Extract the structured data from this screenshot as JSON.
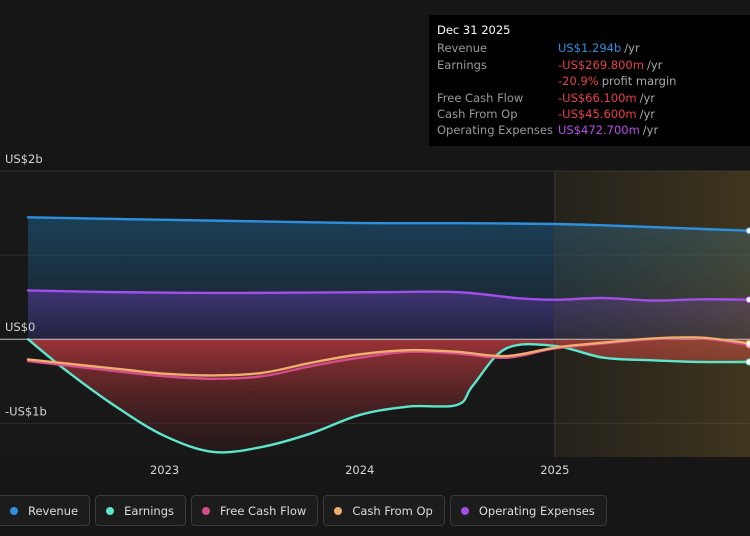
{
  "tooltip": {
    "date": "Dec 31 2025",
    "rows": [
      {
        "label": "Revenue",
        "value": "US$1.294b",
        "unit": "/yr",
        "color": "#2e8fde"
      },
      {
        "label": "Earnings",
        "value": "-US$269.800m",
        "unit": "/yr",
        "color": "#e8414a"
      },
      {
        "label": "",
        "value": "-20.9%",
        "unit": "profit margin",
        "color": "#e8414a"
      },
      {
        "label": "Free Cash Flow",
        "value": "-US$66.100m",
        "unit": "/yr",
        "color": "#e8414a"
      },
      {
        "label": "Cash From Op",
        "value": "-US$45.600m",
        "unit": "/yr",
        "color": "#e8414a"
      },
      {
        "label": "Operating Expenses",
        "value": "US$472.700m",
        "unit": "/yr",
        "color": "#b94fe8"
      }
    ]
  },
  "legend": [
    {
      "label": "Revenue",
      "color": "#2e8fde"
    },
    {
      "label": "Earnings",
      "color": "#5ce6cc"
    },
    {
      "label": "Free Cash Flow",
      "color": "#d44d8c"
    },
    {
      "label": "Cash From Op",
      "color": "#f0ad6c"
    },
    {
      "label": "Operating Expenses",
      "color": "#a34ee8"
    }
  ],
  "chart_data": {
    "type": "area",
    "ylim": [
      -1.4,
      2.0
    ],
    "xlim": [
      2022.3,
      2026.0
    ],
    "y_tick_labels": [
      {
        "value": 2.0,
        "label": "US$2b"
      },
      {
        "value": 0,
        "label": "US$0"
      },
      {
        "value": -1.0,
        "label": "-US$1b"
      }
    ],
    "x_ticks": [
      2023,
      2024,
      2025
    ],
    "forecast_start": 2025,
    "series": [
      {
        "name": "Revenue",
        "color": "#2e8fde",
        "x": [
          2022.3,
          2022.75,
          2023.25,
          2023.75,
          2024.1,
          2024.5,
          2025.0,
          2025.3,
          2025.65,
          2026.0
        ],
        "y": [
          1.45,
          1.43,
          1.41,
          1.39,
          1.38,
          1.38,
          1.37,
          1.35,
          1.32,
          1.29
        ]
      },
      {
        "name": "Operating Expenses",
        "color": "#a34ee8",
        "x": [
          2022.3,
          2022.75,
          2023.25,
          2023.75,
          2024.1,
          2024.5,
          2024.8,
          2025.0,
          2025.25,
          2025.5,
          2025.75,
          2026.0
        ],
        "y": [
          0.58,
          0.56,
          0.55,
          0.555,
          0.56,
          0.56,
          0.49,
          0.47,
          0.49,
          0.46,
          0.475,
          0.47
        ]
      },
      {
        "name": "Earnings",
        "color": "#5ce6cc",
        "x": [
          2022.3,
          2022.5,
          2022.75,
          2023.0,
          2023.25,
          2023.5,
          2023.75,
          2024.0,
          2024.25,
          2024.5,
          2024.58,
          2024.75,
          2025.0,
          2025.25,
          2025.5,
          2025.75,
          2026.0
        ],
        "y": [
          0.0,
          -0.38,
          -0.8,
          -1.15,
          -1.34,
          -1.28,
          -1.12,
          -0.9,
          -0.8,
          -0.78,
          -0.55,
          -0.11,
          -0.08,
          -0.22,
          -0.25,
          -0.27,
          -0.27
        ]
      },
      {
        "name": "Free Cash Flow",
        "color": "#d44d8c",
        "x": [
          2022.3,
          2022.75,
          2023.0,
          2023.25,
          2023.5,
          2023.75,
          2024.0,
          2024.25,
          2024.5,
          2024.75,
          2025.0,
          2025.25,
          2025.5,
          2025.75,
          2026.0
        ],
        "y": [
          -0.26,
          -0.38,
          -0.44,
          -0.47,
          -0.44,
          -0.32,
          -0.22,
          -0.15,
          -0.17,
          -0.22,
          -0.11,
          -0.05,
          0.0,
          0.01,
          -0.07
        ]
      },
      {
        "name": "Cash From Op",
        "color": "#f0ad6c",
        "x": [
          2022.3,
          2022.75,
          2023.0,
          2023.25,
          2023.5,
          2023.75,
          2024.0,
          2024.25,
          2024.5,
          2024.75,
          2025.0,
          2025.25,
          2025.5,
          2025.75,
          2026.0
        ],
        "y": [
          -0.24,
          -0.35,
          -0.41,
          -0.43,
          -0.4,
          -0.28,
          -0.18,
          -0.13,
          -0.15,
          -0.2,
          -0.1,
          -0.04,
          0.01,
          0.02,
          -0.05
        ]
      }
    ]
  }
}
